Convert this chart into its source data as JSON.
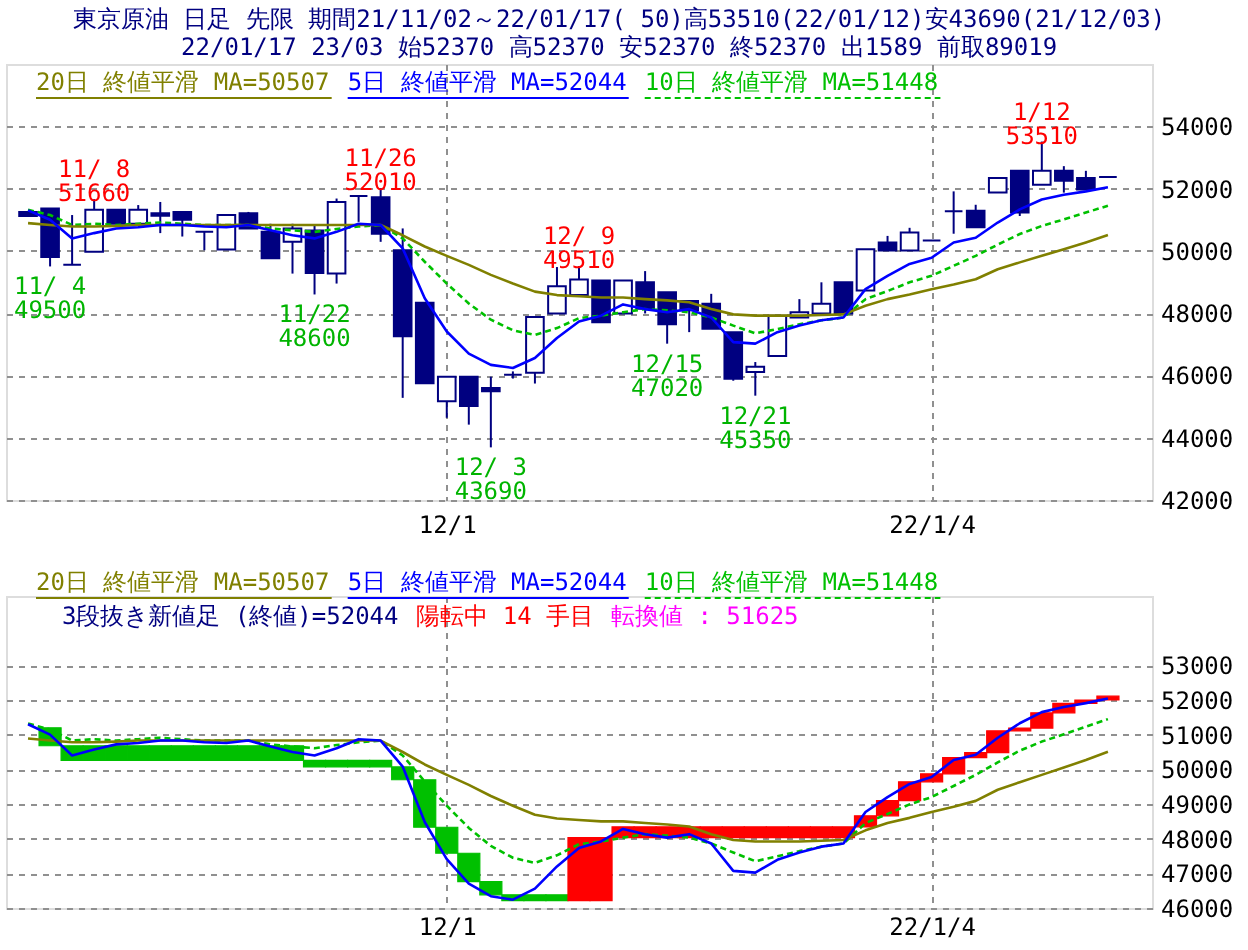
{
  "chart_data": [
    {
      "type": "candlestick",
      "title": "東京原油 日足 先限 期間21/11/02～22/01/17( 50)高53510(22/01/12)安43690(21/12/03)",
      "subtitle": "22/01/17 23/03 始52370 高52370 安52370 終52370 出1589 前取89019",
      "categories": [
        null,
        null,
        null,
        null,
        null,
        null,
        null,
        null,
        null,
        null,
        null,
        null,
        null,
        null,
        null,
        null,
        null,
        null,
        null,
        "12/1",
        null,
        null,
        null,
        null,
        null,
        null,
        null,
        null,
        null,
        null,
        null,
        null,
        null,
        null,
        null,
        null,
        null,
        null,
        null,
        null,
        null,
        "22/1/4",
        null,
        null,
        null,
        null,
        null,
        null,
        null,
        null
      ],
      "color": "#000080",
      "ohlc": [
        [
          51250,
          51250,
          51120,
          51120
        ],
        [
          51360,
          51360,
          49500,
          49800
        ],
        [
          49550,
          51150,
          49550,
          49550
        ],
        [
          49970,
          51660,
          49970,
          51320
        ],
        [
          51320,
          51320,
          50870,
          50870
        ],
        [
          50870,
          51470,
          50870,
          51320
        ],
        [
          51210,
          51570,
          50570,
          51130
        ],
        [
          51250,
          51250,
          50460,
          51000
        ],
        [
          50610,
          50610,
          50020,
          50610
        ],
        [
          50040,
          51150,
          50040,
          51150
        ],
        [
          51210,
          51250,
          50720,
          50720
        ],
        [
          50610,
          50870,
          49760,
          49760
        ],
        [
          50290,
          50870,
          49270,
          50720
        ],
        [
          50650,
          50830,
          48600,
          49290
        ],
        [
          49270,
          51680,
          48950,
          51570
        ],
        [
          51760,
          51760,
          50930,
          51760
        ],
        [
          51720,
          52010,
          50290,
          50550
        ],
        [
          50020,
          50720,
          45280,
          47260
        ],
        [
          48330,
          48330,
          45750,
          45750
        ],
        [
          45170,
          45960,
          44640,
          45960
        ],
        [
          45960,
          45960,
          44420,
          45020
        ],
        [
          45600,
          45960,
          43690,
          45490
        ],
        [
          46020,
          46130,
          45900,
          46020
        ],
        [
          46090,
          47880,
          45740,
          47880
        ],
        [
          47990,
          49480,
          47990,
          48860
        ],
        [
          48580,
          49510,
          48580,
          49080
        ],
        [
          49050,
          49050,
          47710,
          47710
        ],
        [
          47990,
          49050,
          47990,
          49050
        ],
        [
          48990,
          49350,
          47990,
          48140
        ],
        [
          48670,
          48670,
          47020,
          47640
        ],
        [
          48390,
          48390,
          47390,
          48090
        ],
        [
          48300,
          48620,
          47500,
          47500
        ],
        [
          47390,
          47390,
          45830,
          45890
        ],
        [
          46110,
          46430,
          45350,
          46280
        ],
        [
          46620,
          47920,
          46620,
          47920
        ],
        [
          47860,
          48450,
          47860,
          48030
        ],
        [
          47990,
          48990,
          47990,
          48300
        ],
        [
          48990,
          48990,
          47990,
          47990
        ],
        [
          48730,
          50050,
          48730,
          50050
        ],
        [
          50270,
          50480,
          50010,
          50010
        ],
        [
          50010,
          50740,
          50010,
          50590
        ],
        [
          50330,
          50330,
          50330,
          50330
        ],
        [
          51270,
          51910,
          50550,
          51270
        ],
        [
          51290,
          51480,
          50760,
          50760
        ],
        [
          51870,
          52340,
          51870,
          52340
        ],
        [
          52570,
          52570,
          51120,
          51230
        ],
        [
          52120,
          53510,
          52120,
          52570
        ],
        [
          52570,
          52720,
          51870,
          52250
        ],
        [
          52340,
          52570,
          51970,
          51970
        ],
        [
          52370,
          52370,
          52370,
          52370
        ]
      ],
      "series": [
        {
          "name": "20日 終値平滑 MA=50507",
          "type": "line",
          "color": "#808000",
          "values": [
            50890,
            50830,
            50780,
            50780,
            50800,
            50830,
            50830,
            50830,
            50830,
            50830,
            50830,
            50830,
            50830,
            50830,
            50830,
            50830,
            50830,
            50500,
            50140,
            49840,
            49550,
            49230,
            48950,
            48690,
            48580,
            48540,
            48500,
            48500,
            48450,
            48410,
            48350,
            48130,
            47960,
            47920,
            47920,
            47920,
            47940,
            47960,
            48240,
            48450,
            48600,
            48770,
            48920,
            49090,
            49410,
            49630,
            49840,
            50050,
            50270,
            50507
          ]
        },
        {
          "name": "5日 終値平滑 MA=52044",
          "type": "line",
          "color": "#0000ff",
          "values": [
            51300,
            51000,
            50400,
            50570,
            50720,
            50760,
            50830,
            50830,
            50780,
            50760,
            50830,
            50660,
            50500,
            50400,
            50610,
            50870,
            50830,
            50080,
            48480,
            47410,
            46700,
            46340,
            46240,
            46560,
            47200,
            47730,
            47920,
            48280,
            48130,
            48030,
            48130,
            47860,
            47070,
            47020,
            47390,
            47600,
            47770,
            47860,
            48770,
            49200,
            49580,
            49780,
            50270,
            50420,
            50910,
            51330,
            51650,
            51800,
            51910,
            52044
          ]
        },
        {
          "name": "10日 終値平滑 MA=51448",
          "type": "line",
          "color": "#00c000",
          "line_style": "dashed",
          "values": [
            51320,
            51150,
            50830,
            50870,
            50830,
            50870,
            50910,
            50870,
            50830,
            50830,
            50830,
            50720,
            50660,
            50610,
            50700,
            50780,
            50830,
            50400,
            49650,
            48950,
            48310,
            47790,
            47450,
            47300,
            47520,
            47840,
            47920,
            48030,
            48130,
            48090,
            48030,
            47860,
            47600,
            47350,
            47490,
            47640,
            47770,
            47860,
            48450,
            48710,
            48990,
            49200,
            49520,
            49840,
            50200,
            50540,
            50800,
            51010,
            51230,
            51448
          ]
        }
      ],
      "ylim": [
        42000,
        56000
      ],
      "yticks": [
        42000,
        44000,
        46000,
        48000,
        50000,
        52000,
        54000
      ],
      "grid": true,
      "legend": "top left",
      "annotations": [
        {
          "text": "11/ 4\n49500",
          "y": 49500
        },
        {
          "text": "11/ 8\n51660",
          "y": 51660
        },
        {
          "text": "11/22\n48600",
          "y": 48600
        },
        {
          "text": "11/26\n52010",
          "y": 52010
        },
        {
          "text": "12/ 3\n43690",
          "y": 43690
        },
        {
          "text": "12/ 9\n49510",
          "y": 49510
        },
        {
          "text": "12/15\n47020",
          "y": 47020
        },
        {
          "text": "12/21\n45350",
          "y": 45350
        },
        {
          "text": "1/12\n53510",
          "y": 53510
        }
      ]
    },
    {
      "type": "bar",
      "categories": [
        null,
        null,
        null,
        null,
        null,
        null,
        null,
        null,
        null,
        null,
        null,
        null,
        null,
        null,
        null,
        null,
        null,
        null,
        null,
        "12/1",
        null,
        null,
        null,
        null,
        null,
        null,
        null,
        null,
        null,
        null,
        null,
        null,
        null,
        null,
        null,
        null,
        null,
        null,
        null,
        null,
        null,
        "22/1/4",
        null,
        null,
        null,
        null,
        null,
        null,
        null,
        null
      ],
      "series": [
        {
          "type": "bar",
          "values": [
            null,
            -520,
            -420,
            -420,
            -420,
            -420,
            -420,
            -420,
            -420,
            -420,
            -420,
            -420,
            -420,
            -190,
            -190,
            -190,
            -190,
            -370,
            -1370,
            -750,
            -820,
            -380,
            -170,
            -170,
            -170,
            1820,
            1820,
            310,
            310,
            310,
            310,
            310,
            310,
            310,
            310,
            310,
            310,
            310,
            320,
            440,
            540,
            230,
            470,
            140,
            630,
            80,
            440,
            270,
            100,
            110
          ],
          "base": [
            null,
            51200,
            50680,
            50680,
            50680,
            50680,
            50680,
            50680,
            50680,
            50680,
            50680,
            50680,
            50680,
            50260,
            50260,
            50260,
            50260,
            50070,
            49700,
            48330,
            47580,
            46760,
            46380,
            46380,
            46380,
            46210,
            46210,
            48030,
            48030,
            48030,
            48030,
            48030,
            48030,
            48030,
            48030,
            48030,
            48030,
            48030,
            48340,
            48660,
            49100,
            49640,
            49870,
            50340,
            50480,
            51110,
            51190,
            51630,
            51900,
            52000
          ],
          "colors": [
            null,
            "#00c000",
            "#00c000",
            "#00c000",
            "#00c000",
            "#00c000",
            "#00c000",
            "#00c000",
            "#00c000",
            "#00c000",
            "#00c000",
            "#00c000",
            "#00c000",
            "#00c000",
            "#00c000",
            "#00c000",
            "#00c000",
            "#00c000",
            "#00c000",
            "#00c000",
            "#00c000",
            "#00c000",
            "#00c000",
            "#00c000",
            "#00c000",
            "#ff0000",
            "#ff0000",
            "#ff0000",
            "#ff0000",
            "#ff0000",
            "#ff0000",
            "#ff0000",
            "#ff0000",
            "#ff0000",
            "#ff0000",
            "#ff0000",
            "#ff0000",
            "#ff0000",
            "#ff0000",
            "#ff0000",
            "#ff0000",
            "#ff0000",
            "#ff0000",
            "#ff0000",
            "#ff0000",
            "#ff0000",
            "#ff0000",
            "#ff0000",
            "#ff0000",
            "#ff0000"
          ]
        },
        {
          "name": "20日 終値平滑 MA=50507",
          "type": "line",
          "color": "#808000",
          "values": [
            50890,
            50830,
            50780,
            50780,
            50800,
            50830,
            50830,
            50830,
            50830,
            50830,
            50830,
            50830,
            50830,
            50830,
            50830,
            50830,
            50830,
            50500,
            50140,
            49840,
            49550,
            49230,
            48950,
            48690,
            48580,
            48540,
            48500,
            48500,
            48450,
            48410,
            48350,
            48130,
            47960,
            47920,
            47920,
            47920,
            47940,
            47960,
            48240,
            48450,
            48600,
            48770,
            48920,
            49090,
            49410,
            49630,
            49840,
            50050,
            50270,
            50507
          ]
        },
        {
          "name": "5日 終値平滑 MA=52044",
          "type": "line",
          "color": "#0000ff",
          "values": [
            51300,
            51000,
            50400,
            50570,
            50720,
            50760,
            50830,
            50830,
            50780,
            50760,
            50830,
            50660,
            50500,
            50400,
            50610,
            50870,
            50830,
            50080,
            48480,
            47410,
            46700,
            46340,
            46240,
            46560,
            47200,
            47730,
            47920,
            48280,
            48130,
            48030,
            48130,
            47860,
            47070,
            47020,
            47390,
            47600,
            47770,
            47860,
            48770,
            49200,
            49580,
            49780,
            50270,
            50420,
            50910,
            51330,
            51650,
            51800,
            51910,
            52044
          ]
        },
        {
          "name": "10日 終値平滑 MA=51448",
          "type": "line",
          "color": "#00c000",
          "line_style": "dashed",
          "values": [
            51320,
            51150,
            50830,
            50870,
            50830,
            50870,
            50910,
            50870,
            50830,
            50830,
            50830,
            50720,
            50660,
            50610,
            50700,
            50780,
            50830,
            50400,
            49650,
            48950,
            48310,
            47790,
            47450,
            47300,
            47520,
            47840,
            47920,
            48030,
            48130,
            48090,
            48030,
            47860,
            47600,
            47350,
            47490,
            47640,
            47770,
            47860,
            48450,
            48710,
            48990,
            49200,
            49520,
            49840,
            50200,
            50540,
            50800,
            51010,
            51230,
            51448
          ]
        }
      ],
      "ylim": [
        46000,
        55000
      ],
      "yticks": [
        46000,
        47000,
        48000,
        49000,
        50000,
        51000,
        52000,
        53000
      ],
      "grid": true,
      "legend": "top left",
      "annotations": [
        "3段抜き新値足 (終値)=52044",
        "陽転中 14 手目",
        "転換値 : 51625"
      ]
    }
  ]
}
